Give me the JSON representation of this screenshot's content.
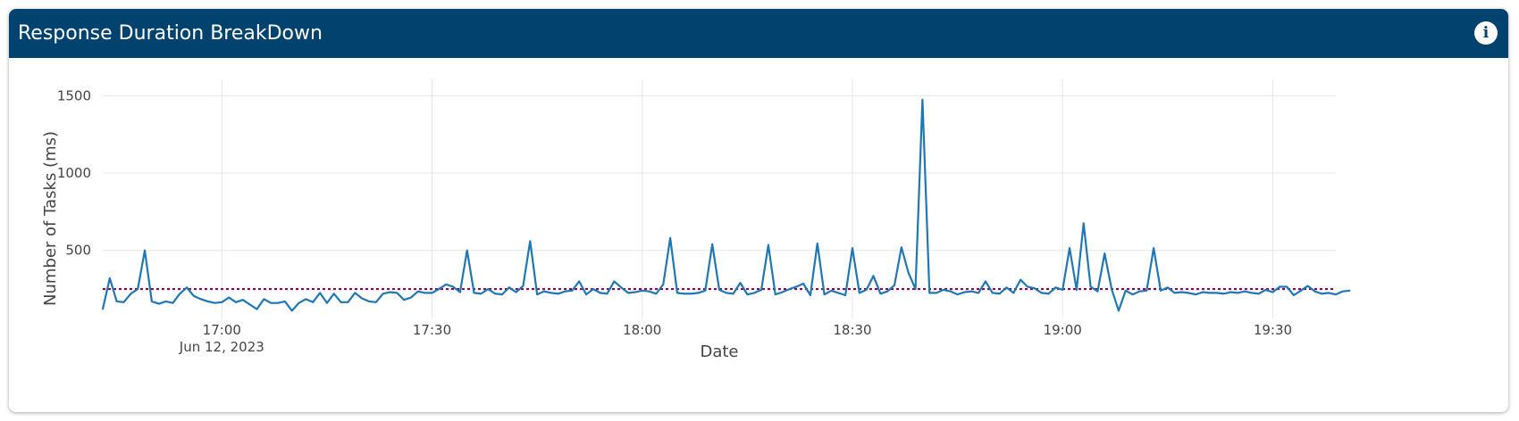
{
  "panel": {
    "title": "Response Duration BreakDown",
    "info_icon": "info-icon"
  },
  "chart_data": {
    "type": "line",
    "xlabel": "Date",
    "ylabel": "Number of Tasks (ms)",
    "x_range": [
      "2023-06-12 16:43",
      "2023-06-12 19:39"
    ],
    "y_range": [
      60,
      1560
    ],
    "x_ticks": [
      {
        "time": "2023-06-12 17:00",
        "label": "17:00",
        "sublabel": "Jun 12, 2023"
      },
      {
        "time": "2023-06-12 17:30",
        "label": "17:30",
        "sublabel": ""
      },
      {
        "time": "2023-06-12 18:00",
        "label": "18:00",
        "sublabel": ""
      },
      {
        "time": "2023-06-12 18:30",
        "label": "18:30",
        "sublabel": ""
      },
      {
        "time": "2023-06-12 19:00",
        "label": "19:00",
        "sublabel": ""
      },
      {
        "time": "2023-06-12 19:30",
        "label": "19:30",
        "sublabel": ""
      }
    ],
    "y_ticks": [
      500,
      1000,
      1500
    ],
    "grid": true,
    "colors": {
      "line": "#1f77b4",
      "average": "#8b0060",
      "grid": "#e6e6e6"
    },
    "average_line": {
      "value": 250,
      "style": "dotted"
    },
    "series": [
      {
        "start": "2023-06-12 16:43",
        "step_minutes": 1,
        "values": [
          120,
          320,
          170,
          165,
          220,
          250,
          500,
          170,
          155,
          170,
          160,
          220,
          260,
          205,
          185,
          170,
          160,
          165,
          195,
          165,
          180,
          150,
          120,
          185,
          160,
          160,
          170,
          110,
          160,
          185,
          165,
          225,
          160,
          220,
          165,
          165,
          225,
          190,
          170,
          165,
          220,
          230,
          225,
          180,
          195,
          235,
          225,
          225,
          250,
          280,
          265,
          230,
          500,
          225,
          220,
          250,
          220,
          215,
          260,
          230,
          270,
          560,
          215,
          235,
          225,
          220,
          235,
          240,
          300,
          215,
          250,
          225,
          220,
          300,
          260,
          225,
          230,
          240,
          235,
          220,
          280,
          580,
          225,
          220,
          220,
          225,
          240,
          540,
          245,
          225,
          220,
          290,
          215,
          225,
          245,
          535,
          215,
          230,
          250,
          265,
          285,
          210,
          545,
          215,
          240,
          225,
          210,
          515,
          225,
          245,
          335,
          220,
          235,
          275,
          520,
          355,
          250,
          1475,
          225,
          225,
          245,
          235,
          215,
          230,
          235,
          225,
          300,
          225,
          220,
          260,
          225,
          310,
          265,
          255,
          225,
          220,
          260,
          245,
          515,
          245,
          675,
          265,
          235,
          480,
          250,
          110,
          240,
          215,
          235,
          240,
          515,
          240,
          260,
          225,
          230,
          225,
          215,
          230,
          225,
          225,
          220,
          230,
          225,
          235,
          225,
          220,
          245,
          230,
          265,
          265,
          210,
          240,
          270,
          235,
          220,
          225,
          215,
          235,
          240
        ]
      }
    ]
  }
}
